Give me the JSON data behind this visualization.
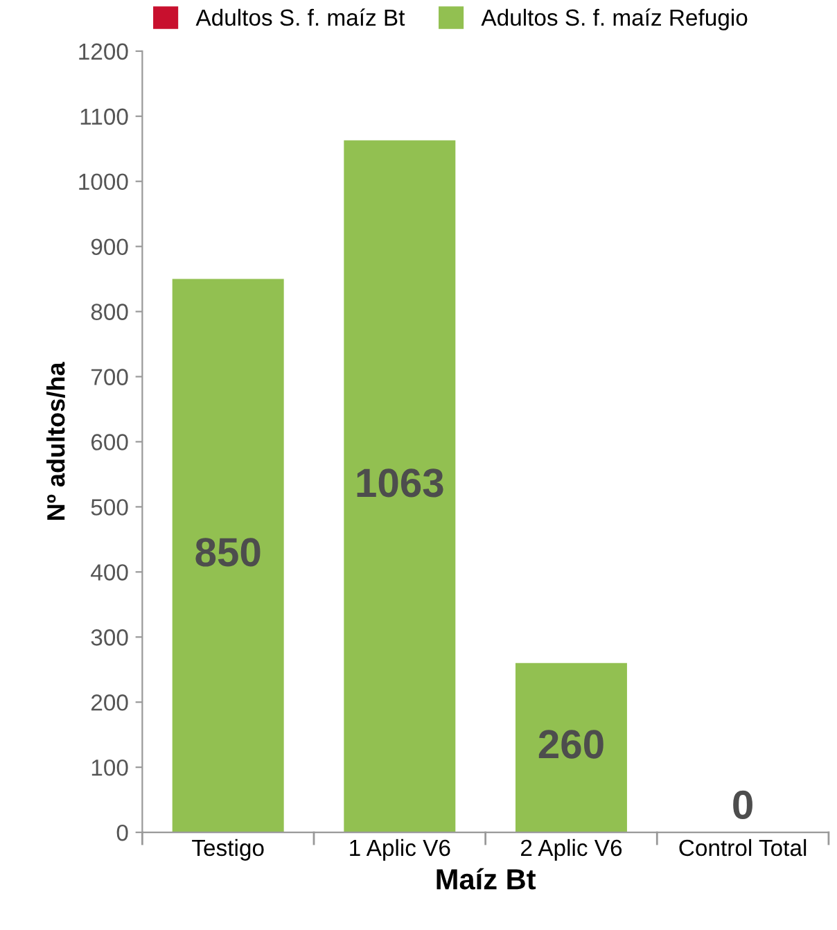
{
  "chart_data": {
    "type": "bar",
    "xlabel": "Maíz Bt",
    "ylabel": "Nº adultos/ha",
    "categories": [
      "Testigo",
      "1 Aplic V6",
      "2 Aplic V6",
      "Control Total"
    ],
    "ylim": [
      0,
      1200
    ],
    "yticks": [
      0,
      100,
      200,
      300,
      400,
      500,
      600,
      700,
      800,
      900,
      1000,
      1100,
      1200
    ],
    "grid": false,
    "legend": "top",
    "series": [
      {
        "name": "Adultos S. f. maíz Bt",
        "color": "#c8102e",
        "values": [
          0,
          0,
          0,
          0
        ]
      },
      {
        "name": "Adultos S. f. maíz Refugio",
        "color": "#92c051",
        "values": [
          850,
          1063,
          260,
          0
        ],
        "value_labels": [
          "850",
          "1063",
          "260",
          "0"
        ]
      }
    ]
  }
}
